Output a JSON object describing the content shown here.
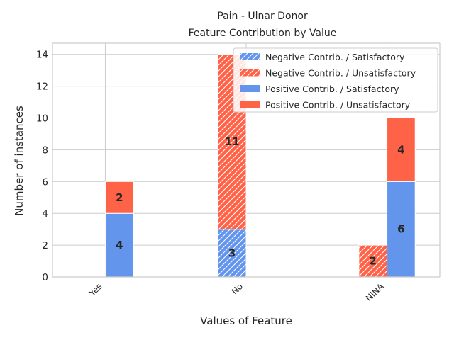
{
  "chart_data": {
    "type": "bar",
    "title_lines": [
      "Pain - Ulnar Donor",
      "Feature Contribution by Value"
    ],
    "xlabel": "Values of Feature",
    "ylabel": "Number of instances",
    "categories": [
      "Yes",
      "No",
      "NINA"
    ],
    "ylim": [
      0,
      14.7
    ],
    "yticks": [
      0,
      2,
      4,
      6,
      8,
      10,
      12,
      14
    ],
    "grid": true,
    "legend_position": "top-right",
    "colors": {
      "satisfactory": "#6495ED",
      "unsatisfactory": "#FF6347"
    },
    "series": [
      {
        "name": "Negative Contrib. / Satisfactory",
        "group": "negative",
        "hatched": true,
        "color": "#6495ED",
        "values": [
          0,
          3,
          0
        ]
      },
      {
        "name": "Negative Contrib. / Unsatisfactory",
        "group": "negative",
        "hatched": true,
        "color": "#FF6347",
        "values": [
          0,
          11,
          2
        ]
      },
      {
        "name": "Positive Contrib. / Satisfactory",
        "group": "positive",
        "hatched": false,
        "color": "#6495ED",
        "values": [
          4,
          0,
          6
        ]
      },
      {
        "name": "Positive Contrib. / Unsatisfactory",
        "group": "positive",
        "hatched": false,
        "color": "#FF6347",
        "values": [
          2,
          0,
          4
        ]
      }
    ]
  }
}
